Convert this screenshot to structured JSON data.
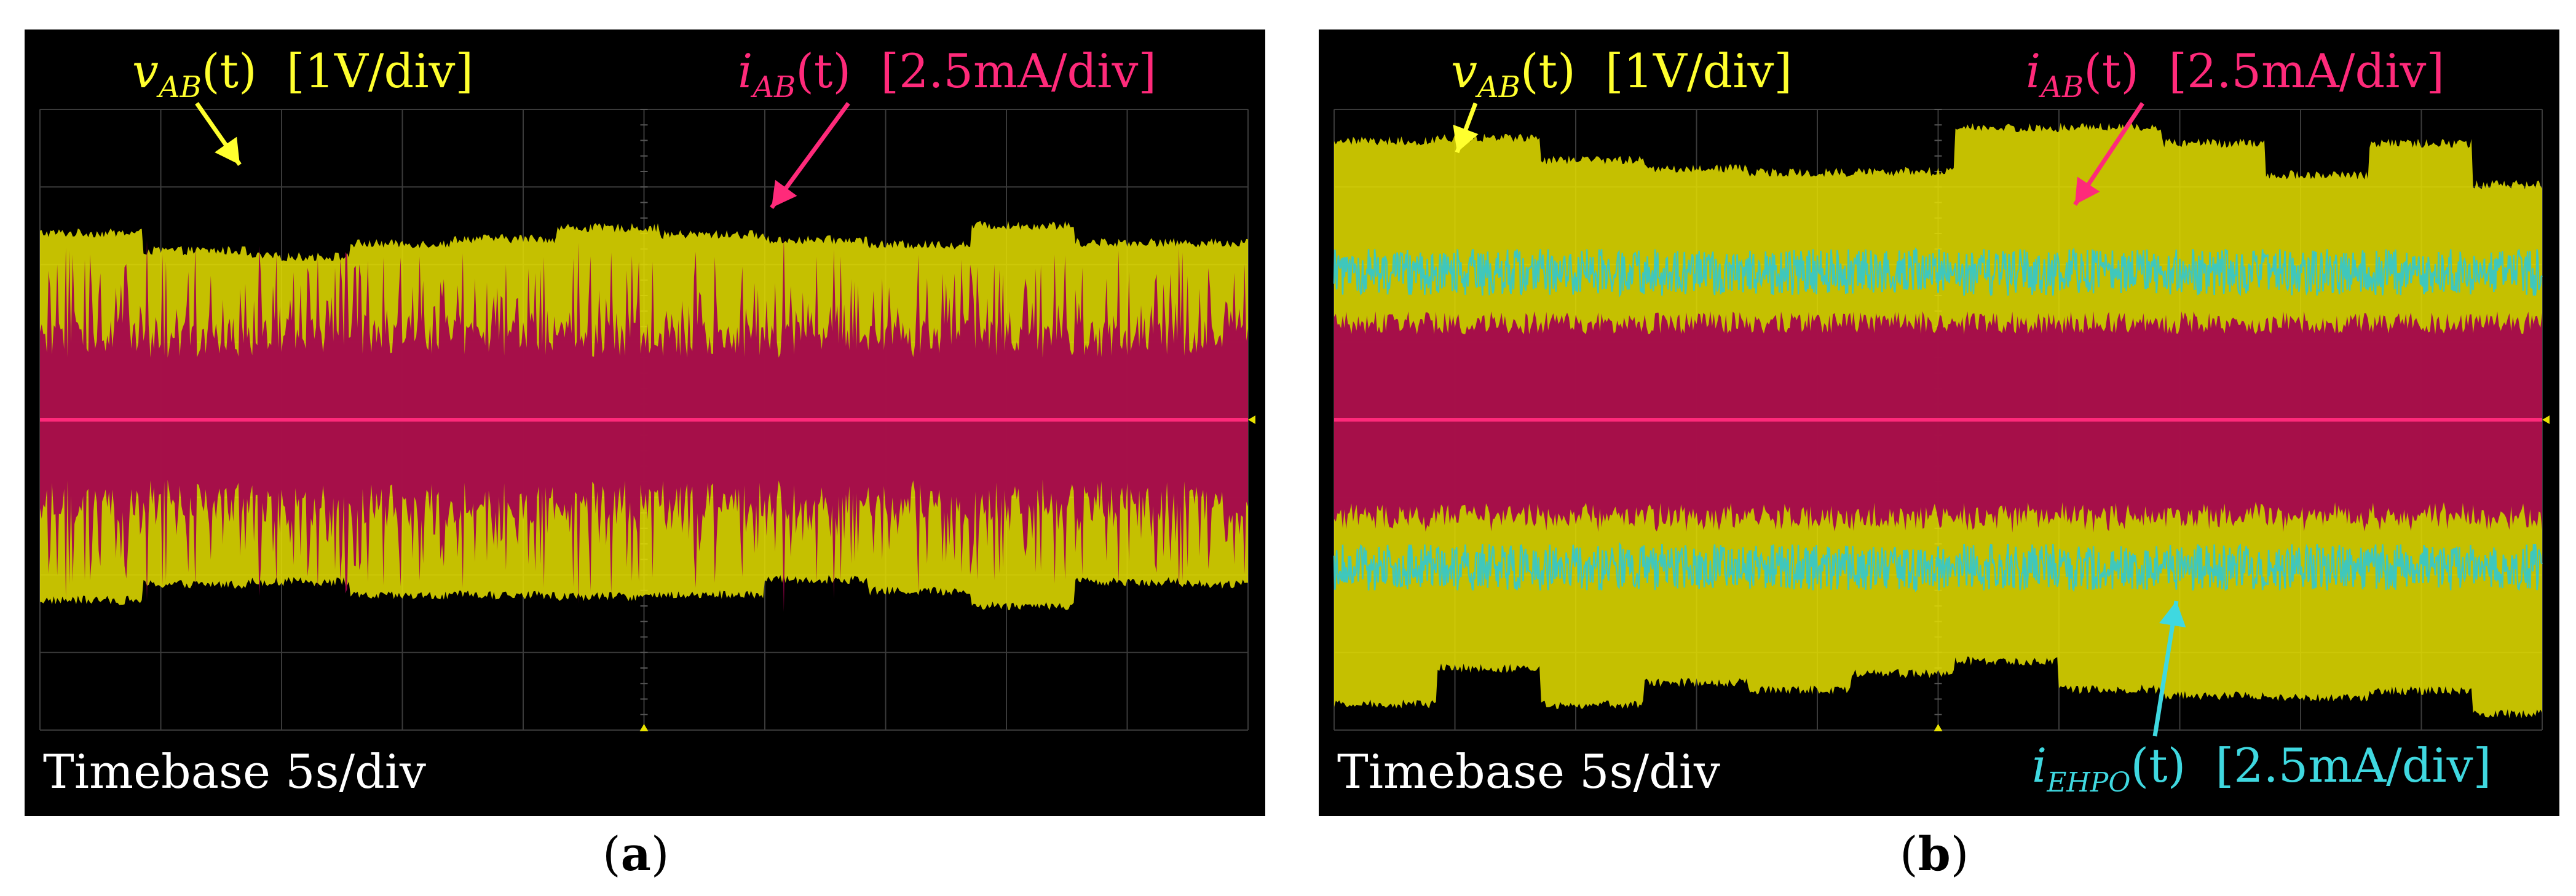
{
  "panels": [
    {
      "id": "a",
      "caption_open": "(",
      "caption_letter": "a",
      "caption_close": ")",
      "labels": {
        "v_symbol": "v",
        "v_sub": "AB",
        "v_arg": "(t)",
        "v_scale": "[1V/div]",
        "i_symbol": "i",
        "i_sub": "AB",
        "i_arg": "(t)",
        "i_scale": "[2.5mA/div]",
        "timebase": "Timebase 5s/div"
      }
    },
    {
      "id": "b",
      "caption_open": "(",
      "caption_letter": "b",
      "caption_close": ")",
      "labels": {
        "v_symbol": "v",
        "v_sub": "AB",
        "v_arg": "(t)",
        "v_scale": "[1V/div]",
        "i_symbol": "i",
        "i_sub": "AB",
        "i_arg": "(t)",
        "i_scale": "[2.5mA/div]",
        "ie_symbol": "i",
        "ie_sub": "EHPO",
        "ie_arg": "(t)",
        "ie_scale": "[2.5mA/div]",
        "timebase": "Timebase 5s/div"
      }
    }
  ],
  "chart_data": [
    {
      "type": "area",
      "title": "(a)",
      "x_grid_divisions": 10,
      "y_grid_divisions": 8,
      "timebase_s_per_div": 5,
      "grid": true,
      "series": [
        {
          "name": "vAB(t)",
          "color": "#e8e200",
          "scale": "1V/div",
          "envelope_div": [
            2.05,
            2.55
          ],
          "envelope_div_lower": [
            -2.4,
            -2.05
          ]
        },
        {
          "name": "iAB(t)",
          "color": "#a3004f",
          "scale": "2.5mA/div",
          "envelope_div": [
            0.8,
            1.3
          ]
        }
      ]
    },
    {
      "type": "area",
      "title": "(b)",
      "x_grid_divisions": 10,
      "y_grid_divisions": 8,
      "timebase_s_per_div": 5,
      "grid": true,
      "series": [
        {
          "name": "vAB(t)",
          "color": "#e8e200",
          "scale": "1V/div",
          "envelope_div": [
            3.0,
            3.8
          ],
          "envelope_div_lower": [
            -3.8,
            -3.1
          ]
        },
        {
          "name": "iAB(t)",
          "color": "#a3004f",
          "scale": "2.5mA/div",
          "envelope_div": [
            1.1,
            1.4
          ]
        },
        {
          "name": "iEHPO(t)",
          "color": "#30c8d0",
          "scale": "2.5mA/div",
          "envelope_div": [
            1.6,
            2.2
          ]
        }
      ]
    }
  ]
}
